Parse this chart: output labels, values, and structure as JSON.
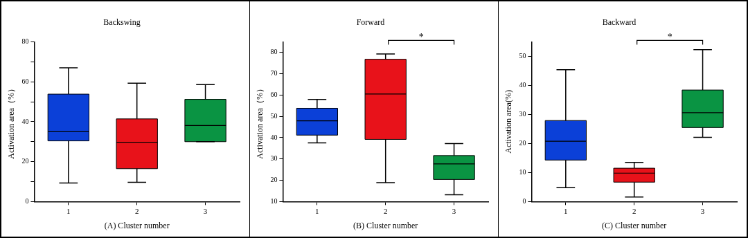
{
  "chart_data": [
    {
      "type": "box",
      "title": "Backswing",
      "xlabel": "(A) Cluster number",
      "ylabel": "Activation area（%）",
      "categories": [
        "1",
        "2",
        "3"
      ],
      "colors": [
        "#0b40d8",
        "#e8121a",
        "#0a9443"
      ],
      "boxes": [
        {
          "low": 9.3,
          "q1": 30.4,
          "median": 35,
          "q3": 53.8,
          "high": 67
        },
        {
          "low": 9.7,
          "q1": 16.5,
          "median": 29.7,
          "q3": 41.4,
          "high": 59.3
        },
        {
          "low": 30,
          "q1": 30,
          "median": 38.1,
          "q3": 51.2,
          "high": 58.6
        }
      ],
      "ylim": [
        0,
        80
      ],
      "yticks": [
        0,
        {
          "value": 10,
          "label": null
        },
        20,
        {
          "value": 30,
          "label": null
        },
        40,
        {
          "value": 50,
          "label": null
        },
        60,
        {
          "value": 70,
          "label": null
        },
        80
      ],
      "grid": false,
      "legend": false
    },
    {
      "type": "box",
      "title": "Forward",
      "xlabel": "(B) Cluster number",
      "ylabel": "Activation area（%）",
      "categories": [
        "1",
        "2",
        "3"
      ],
      "colors": [
        "#0b40d8",
        "#e8121a",
        "#0a9443"
      ],
      "boxes": [
        {
          "low": 37.6,
          "q1": 41.2,
          "median": 47.9,
          "q3": 53.8,
          "high": 57.9
        },
        {
          "low": 18.9,
          "q1": 39.2,
          "median": 60.5,
          "q3": 76.8,
          "high": 79.3
        },
        {
          "low": 13.2,
          "q1": 20.4,
          "median": 27.7,
          "q3": 31.6,
          "high": 37.2
        }
      ],
      "ylim": [
        10,
        85
      ],
      "yticks": [
        10,
        20,
        30,
        40,
        50,
        60,
        70,
        80
      ],
      "grid": false,
      "legend": false,
      "annotations": [
        "*"
      ]
    },
    {
      "type": "box",
      "title": "Backward",
      "xlabel": "(C) Cluster number",
      "ylabel": "Activation area(%)",
      "categories": [
        "1",
        "2",
        "3"
      ],
      "colors": [
        "#0b40d8",
        "#e8121a",
        "#0a9443"
      ],
      "boxes": [
        {
          "low": 4.8,
          "q1": 14.3,
          "median": 20.8,
          "q3": 27.9,
          "high": 45.4
        },
        {
          "low": 1.6,
          "q1": 6.7,
          "median": 9.8,
          "q3": 11.5,
          "high": 13.5
        },
        {
          "low": 22.1,
          "q1": 25.5,
          "median": 30.6,
          "q3": 38.4,
          "high": 52.3
        }
      ],
      "ylim": [
        0,
        55
      ],
      "yticks": [
        0,
        10,
        20,
        30,
        40,
        50
      ],
      "grid": false,
      "legend": false,
      "annotations": [
        "*"
      ]
    }
  ]
}
